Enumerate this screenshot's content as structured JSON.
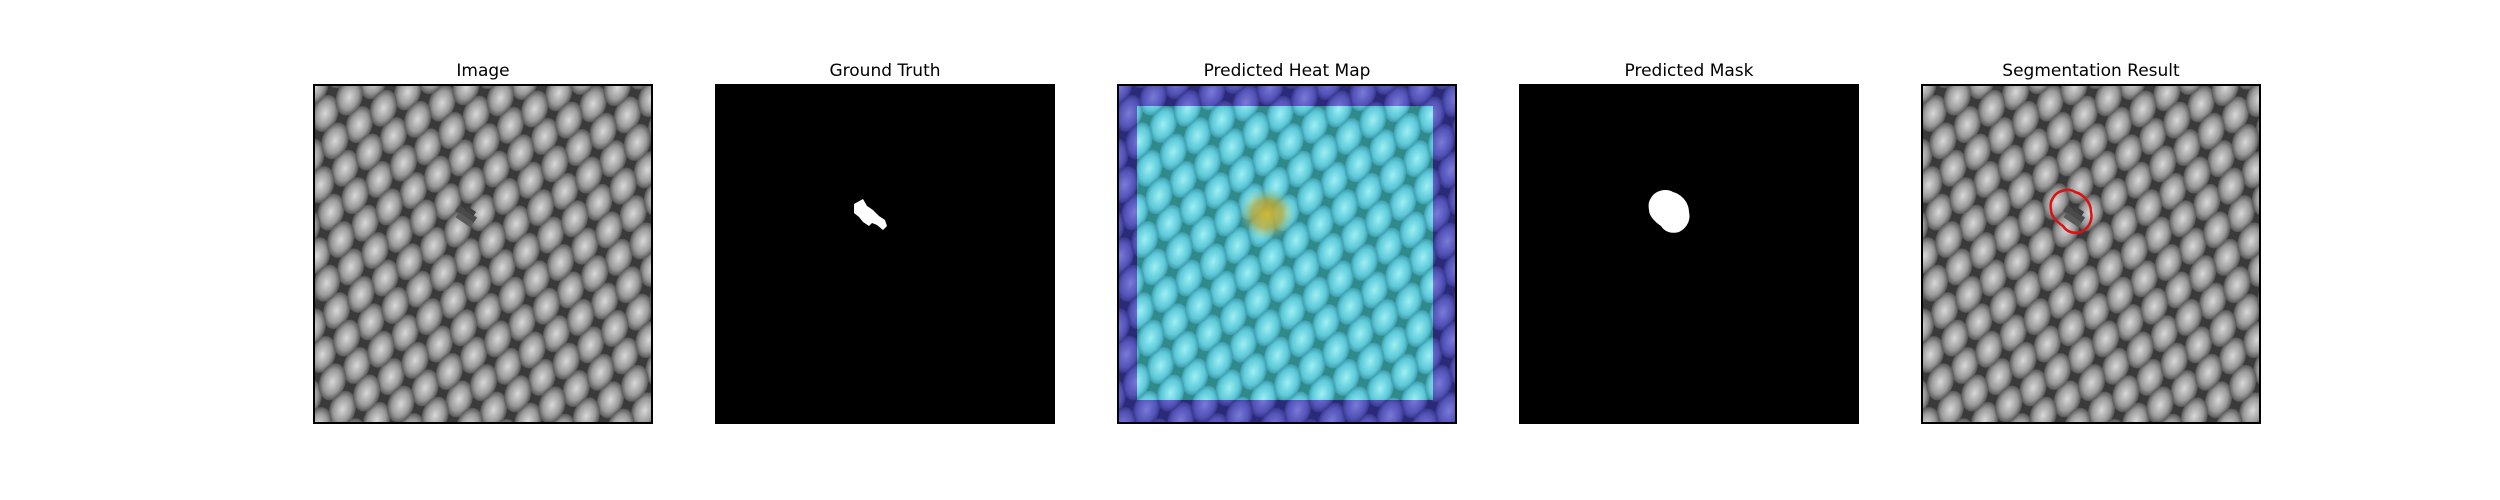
{
  "panels": [
    {
      "title": "Image",
      "icon": "mesh-texture-image"
    },
    {
      "title": "Ground Truth",
      "icon": "binary-mask-image"
    },
    {
      "title": "Predicted Heat Map",
      "icon": "heatmap-overlay-image"
    },
    {
      "title": "Predicted Mask",
      "icon": "binary-mask-image"
    },
    {
      "title": "Segmentation Result",
      "icon": "contour-overlay-image"
    }
  ],
  "colors": {
    "background": "#ffffff",
    "mask_foreground": "#ffffff",
    "mask_background": "#000000",
    "heat_low": "#3a3aa8",
    "heat_mid": "#5fd3e0",
    "heat_high": "#c8b23a",
    "contour": "#e01010"
  }
}
